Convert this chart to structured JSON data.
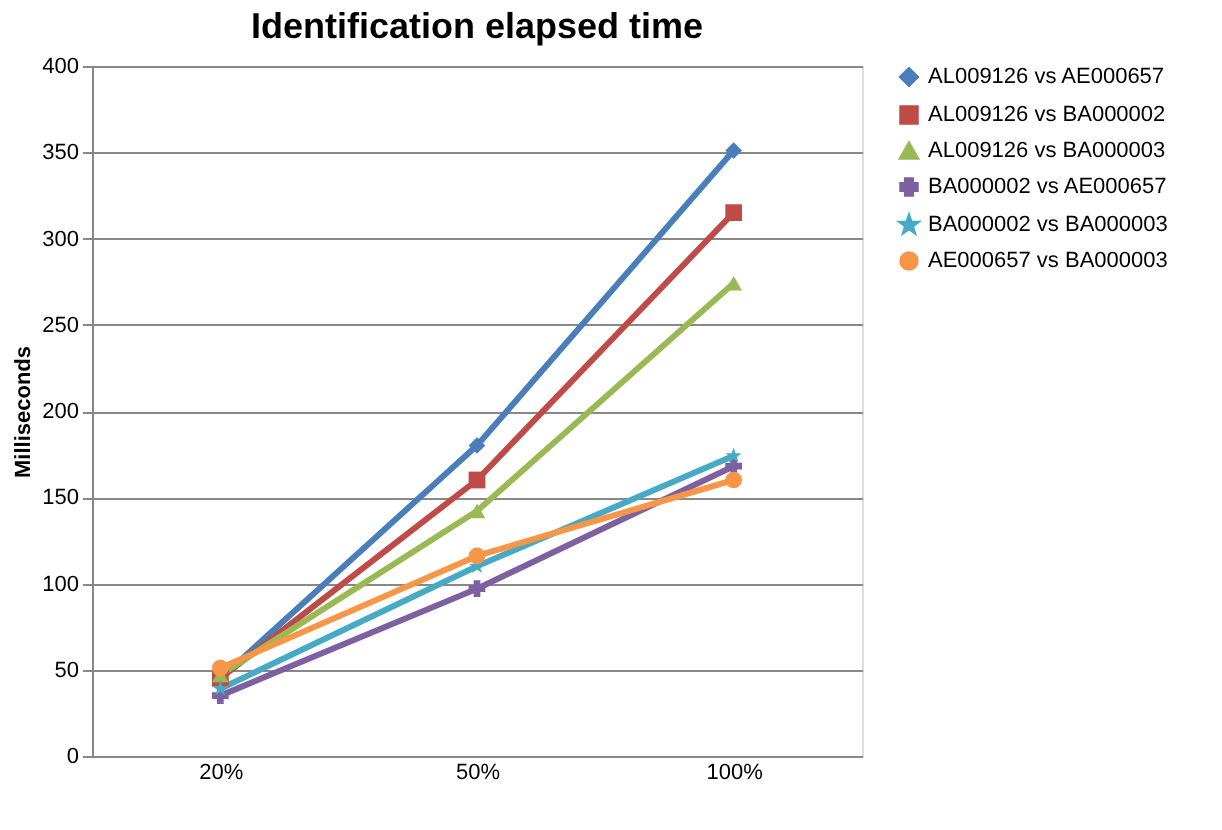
{
  "chart_data": {
    "type": "line",
    "title": "Identification elapsed time",
    "ylabel": "Milliseconds",
    "categories": [
      "20%",
      "50%",
      "100%"
    ],
    "series": [
      {
        "name": "AL009126 vs AE000657",
        "color": "#4a7ebb",
        "marker": "diamond",
        "values": [
          45,
          180,
          351
        ]
      },
      {
        "name": "AL009126 vs BA000002",
        "color": "#be4b48",
        "marker": "square",
        "values": [
          45,
          160,
          315
        ]
      },
      {
        "name": "AL009126 vs BA000003",
        "color": "#98b954",
        "marker": "triangle",
        "values": [
          47,
          142,
          274
        ]
      },
      {
        "name": "BA000002 vs AE000657",
        "color": "#7d60a0",
        "marker": "cross",
        "values": [
          35,
          97,
          168
        ]
      },
      {
        "name": "BA000002 vs BA000003",
        "color": "#46aac5",
        "marker": "star",
        "values": [
          39,
          110,
          174
        ]
      },
      {
        "name": "AE000657 vs BA000003",
        "color": "#f79646",
        "marker": "circle",
        "values": [
          51,
          116,
          160
        ]
      }
    ],
    "ylim": [
      0,
      400
    ],
    "yticks": [
      0,
      50,
      100,
      150,
      200,
      250,
      300,
      350,
      400
    ],
    "grid": "y",
    "legend": "right",
    "line_style": "solid"
  }
}
